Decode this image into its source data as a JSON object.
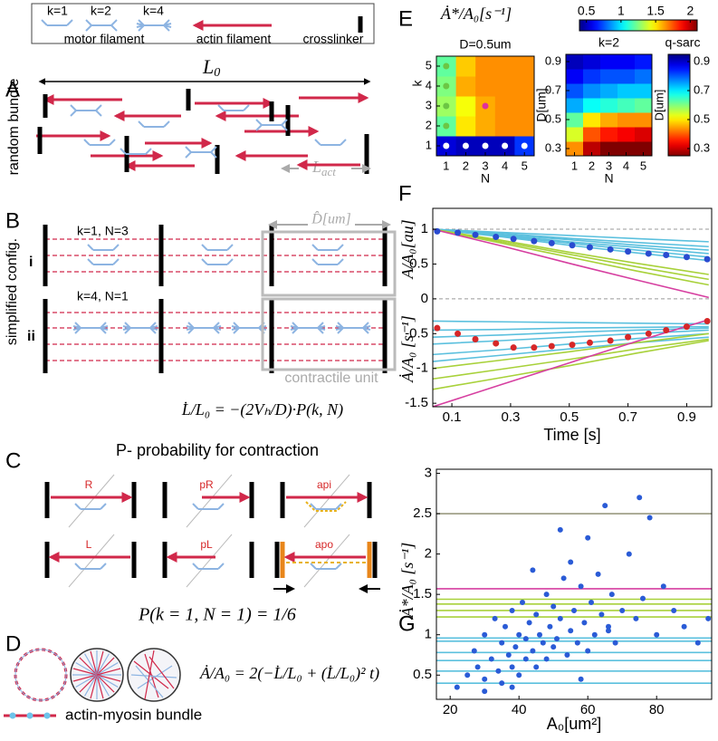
{
  "panel_labels": [
    "A",
    "B",
    "C",
    "D",
    "E",
    "F",
    "G"
  ],
  "panel_a": {
    "legend": {
      "k1": "k=1",
      "k2": "k=2",
      "k4": "k=4",
      "motor": "motor filament",
      "actin": "actin filament",
      "crosslinker": "crosslinker"
    },
    "side_label": "random bundle",
    "length": {
      "base": "L",
      "sub": "0"
    },
    "act_length": {
      "base": "L",
      "sub": "act"
    }
  },
  "panel_b": {
    "side_label": "simplified config.",
    "row1": "k=1, N=3",
    "row2": "k=4, N=1",
    "roman": [
      "i",
      "ii"
    ],
    "unit_size": "D̂[um]",
    "unit": "contractile unit",
    "equation": "L̇/L₀ = −(2Vₕ/D)·P(k, N)"
  },
  "panel_c": {
    "title": "P- probability for contraction",
    "configs": [
      "R",
      "pR",
      "api",
      "L",
      "pL",
      "apo"
    ],
    "equation": "P(k = 1, N = 1) = 1/6"
  },
  "panel_d": {
    "equation": "Ȧ/A₀ = 2(−L̇/L₀ + (L̇/L₀)² t)",
    "legend": "actin-myosin bundle"
  },
  "chart_data": [
    {
      "type": "heatmap",
      "title": "D=0.5um",
      "colorbar_label": "Ȧ*/A₀[s⁻¹]",
      "colormap": "jet",
      "clim": [
        0.4,
        2.1
      ],
      "colorbar_ticks": [
        0.5,
        1,
        1.5,
        2
      ],
      "xlabel": "N",
      "ylabel": "k",
      "x": [
        1,
        2,
        3,
        4,
        5
      ],
      "y": [
        1,
        2,
        3,
        4,
        5
      ],
      "xlim": [
        0.5,
        5.5
      ],
      "ylim": [
        0.5,
        5.5
      ],
      "xticks": [
        1,
        2,
        3,
        4,
        5
      ],
      "yticks": [
        1,
        2,
        3,
        4,
        5
      ],
      "values": [
        [
          0.55,
          0.5,
          0.5,
          0.5,
          0.7
        ],
        [
          1.2,
          1.5,
          1.6,
          1.65,
          1.65
        ],
        [
          1.3,
          1.45,
          1.6,
          1.65,
          1.65
        ],
        [
          1.25,
          1.6,
          1.65,
          1.65,
          1.65
        ],
        [
          1.2,
          1.55,
          1.65,
          1.65,
          1.65
        ]
      ],
      "markers": [
        {
          "x": 1,
          "y": 1,
          "color": "#ffffff"
        },
        {
          "x": 2,
          "y": 1,
          "color": "#ffffff"
        },
        {
          "x": 3,
          "y": 1,
          "color": "#ffffff"
        },
        {
          "x": 4,
          "y": 1,
          "color": "#ffffff"
        },
        {
          "x": 5,
          "y": 1,
          "color": "#ffffff"
        },
        {
          "x": 1,
          "y": 2,
          "color": "#6cc644"
        },
        {
          "x": 1,
          "y": 3,
          "color": "#6cc644"
        },
        {
          "x": 1,
          "y": 4,
          "color": "#6cc644"
        },
        {
          "x": 1,
          "y": 5,
          "color": "#6cc644"
        },
        {
          "x": 3,
          "y": 3,
          "color": "#e0309a"
        }
      ]
    },
    {
      "type": "heatmap",
      "title": "k=2",
      "colormap": "jet",
      "clim": [
        0.4,
        2.1
      ],
      "xlabel": "N",
      "ylabel": "D[um]",
      "x": [
        1,
        2,
        3,
        4,
        5
      ],
      "y": [
        0.3,
        0.4,
        0.5,
        0.6,
        0.7,
        0.8,
        0.9
      ],
      "xlim": [
        0.5,
        5.5
      ],
      "ylim": [
        0.25,
        0.95
      ],
      "xticks": [
        1,
        2,
        3,
        4,
        5
      ],
      "yticks": [
        0.3,
        0.5,
        0.7,
        0.9
      ],
      "values": [
        [
          1.65,
          2.0,
          2.1,
          2.1,
          2.1
        ],
        [
          1.4,
          1.75,
          1.85,
          1.9,
          1.95
        ],
        [
          1.2,
          1.5,
          1.6,
          1.65,
          1.65
        ],
        [
          0.9,
          1.05,
          1.1,
          1.15,
          1.2
        ],
        [
          0.75,
          0.85,
          0.9,
          0.95,
          0.95
        ],
        [
          0.6,
          0.7,
          0.75,
          0.75,
          0.8
        ],
        [
          0.5,
          0.55,
          0.6,
          0.6,
          0.65
        ]
      ],
      "colorbar": {
        "title": "q-sarc",
        "label": "D[um]",
        "lim": [
          0.25,
          0.95
        ],
        "ticks": [
          0.9,
          0.7,
          0.5,
          0.3
        ],
        "reverse": true
      }
    },
    {
      "type": "line",
      "xlabel": "Time [s]",
      "ylabel": [
        {
          "text": "Ȧ/A₀ [s⁻¹]",
          "color": "#d62728"
        },
        {
          "text": "A/A₀[au]",
          "color": "#2233cc"
        }
      ],
      "xlim": [
        0.035,
        0.985
      ],
      "ylim": [
        -1.55,
        1.3
      ],
      "xticks": [
        0.1,
        0.3,
        0.5,
        0.7,
        0.9
      ],
      "yticks": [
        -1.5,
        -1,
        -0.5,
        0,
        0.5,
        1
      ],
      "hlines": [
        1,
        0
      ],
      "x": [
        0.035,
        0.27,
        0.5,
        0.73,
        0.975
      ],
      "series": [
        {
          "color": "#5bc0de",
          "values": [
            1,
            0.955,
            0.91,
            0.865,
            0.82
          ]
        },
        {
          "color": "#5bc0de",
          "values": [
            1,
            0.94,
            0.87,
            0.81,
            0.75
          ]
        },
        {
          "color": "#5bc0de",
          "values": [
            1,
            0.92,
            0.85,
            0.77,
            0.7
          ]
        },
        {
          "color": "#5bc0de",
          "values": [
            1,
            0.91,
            0.82,
            0.74,
            0.65
          ]
        },
        {
          "color": "#5bc0de",
          "values": [
            1,
            0.9,
            0.8,
            0.7,
            0.6
          ]
        },
        {
          "color": "#5bc0de",
          "values": [
            1,
            0.89,
            0.77,
            0.66,
            0.55
          ]
        },
        {
          "color": "#a8d13a",
          "values": [
            1,
            0.84,
            0.67,
            0.51,
            0.35
          ]
        },
        {
          "color": "#a8d13a",
          "values": [
            1,
            0.82,
            0.64,
            0.46,
            0.28
          ]
        },
        {
          "color": "#a8d13a",
          "values": [
            1,
            0.8,
            0.6,
            0.4,
            0.2
          ]
        },
        {
          "color": "#d63fa0",
          "values": [
            1,
            0.76,
            0.51,
            0.27,
            0.02
          ]
        },
        {
          "color": "#5bc0de",
          "values": [
            -0.32,
            -0.33,
            -0.34,
            -0.35,
            -0.36
          ]
        },
        {
          "color": "#5bc0de",
          "values": [
            -0.45,
            -0.44,
            -0.42,
            -0.41,
            -0.4
          ]
        },
        {
          "color": "#5bc0de",
          "values": [
            -0.55,
            -0.52,
            -0.48,
            -0.45,
            -0.42
          ]
        },
        {
          "color": "#5bc0de",
          "values": [
            -0.65,
            -0.6,
            -0.55,
            -0.5,
            -0.45
          ]
        },
        {
          "color": "#5bc0de",
          "values": [
            -0.8,
            -0.73,
            -0.65,
            -0.57,
            -0.5
          ]
        },
        {
          "color": "#5bc0de",
          "values": [
            -0.9,
            -0.81,
            -0.72,
            -0.63,
            -0.55
          ]
        },
        {
          "color": "#a8d13a",
          "values": [
            -1.0,
            -0.88,
            -0.76,
            -0.63,
            -0.5
          ]
        },
        {
          "color": "#a8d13a",
          "values": [
            -1.15,
            -1.01,
            -0.87,
            -0.72,
            -0.58
          ]
        },
        {
          "color": "#a8d13a",
          "values": [
            -1.3,
            -1.13,
            -0.96,
            -0.78,
            -0.6
          ]
        },
        {
          "color": "#d63fa0",
          "values": [
            -1.55,
            -1.23,
            -0.92,
            -0.61,
            -0.3
          ]
        },
        {
          "color": "#2a4bd0",
          "x": [
            0.05,
            0.12,
            0.18,
            0.25,
            0.31,
            0.38,
            0.44,
            0.51,
            0.57,
            0.64,
            0.7,
            0.77,
            0.83,
            0.9,
            0.97
          ],
          "values": [
            0.97,
            0.95,
            0.92,
            0.89,
            0.86,
            0.83,
            0.8,
            0.77,
            0.74,
            0.71,
            0.68,
            0.65,
            0.63,
            0.6,
            0.57
          ]
        },
        {
          "color": "#d62728",
          "x": [
            0.05,
            0.12,
            0.18,
            0.25,
            0.31,
            0.38,
            0.44,
            0.51,
            0.57,
            0.64,
            0.7,
            0.77,
            0.83,
            0.9,
            0.97
          ],
          "values": [
            -0.42,
            -0.5,
            -0.58,
            -0.64,
            -0.7,
            -0.7,
            -0.68,
            -0.66,
            -0.63,
            -0.6,
            -0.55,
            -0.5,
            -0.45,
            -0.4,
            -0.32
          ]
        }
      ]
    },
    {
      "type": "scatter",
      "xlabel": "A₀[um²]",
      "ylabel": "Ȧ*/A₀ [s⁻¹]",
      "color": "#2a5bd6",
      "xlim": [
        16,
        96
      ],
      "ylim": [
        0.2,
        3.05
      ],
      "xticks": [
        20,
        40,
        60,
        80
      ],
      "yticks": [
        0.5,
        1,
        1.5,
        2,
        2.5,
        3
      ],
      "hlines": [
        {
          "value": 2.5,
          "color": "#9a9a80"
        },
        {
          "value": 1.57,
          "color": "#d63fa0"
        },
        {
          "value": 1.44,
          "color": "#a8d13a"
        },
        {
          "value": 1.38,
          "color": "#a8d13a"
        },
        {
          "value": 1.3,
          "color": "#a8d13a"
        },
        {
          "value": 1.22,
          "color": "#a8d13a"
        },
        {
          "value": 0.96,
          "color": "#5bc0de"
        },
        {
          "value": 0.92,
          "color": "#5bc0de"
        },
        {
          "value": 0.78,
          "color": "#5bc0de"
        },
        {
          "value": 0.68,
          "color": "#5bc0de"
        },
        {
          "value": 0.55,
          "color": "#5bc0de"
        },
        {
          "value": 0.4,
          "color": "#5bc0de"
        }
      ],
      "x": [
        22,
        25,
        27,
        28,
        30,
        30,
        32,
        33,
        34,
        35,
        35,
        36,
        37,
        38,
        38,
        39,
        40,
        40,
        41,
        42,
        42,
        43,
        44,
        45,
        45,
        46,
        47,
        48,
        48,
        49,
        50,
        50,
        51,
        52,
        53,
        54,
        55,
        55,
        56,
        57,
        58,
        59,
        60,
        60,
        61,
        62,
        63,
        64,
        65,
        66,
        67,
        68,
        70,
        72,
        74,
        75,
        76,
        78,
        80,
        82,
        85,
        88,
        92,
        95,
        30,
        38,
        44,
        52,
        58,
        66
      ],
      "values": [
        0.35,
        0.5,
        0.8,
        0.6,
        0.45,
        1.0,
        0.7,
        1.2,
        0.55,
        0.9,
        0.4,
        1.1,
        0.75,
        0.6,
        1.3,
        0.85,
        0.5,
        1.0,
        1.4,
        0.7,
        0.95,
        1.15,
        0.8,
        0.6,
        1.25,
        1.0,
        0.9,
        1.5,
        0.7,
        1.1,
        0.85,
        1.35,
        0.95,
        1.2,
        1.7,
        0.75,
        1.05,
        1.9,
        1.3,
        0.9,
        1.6,
        1.15,
        2.2,
        0.8,
        1.4,
        1.0,
        1.75,
        1.25,
        2.6,
        1.1,
        1.5,
        0.9,
        1.3,
        2.0,
        1.2,
        2.7,
        1.45,
        2.45,
        1.0,
        1.6,
        1.3,
        1.1,
        0.9,
        1.2,
        0.3,
        0.35,
        1.8,
        2.3,
        0.45,
        1.05
      ]
    }
  ]
}
